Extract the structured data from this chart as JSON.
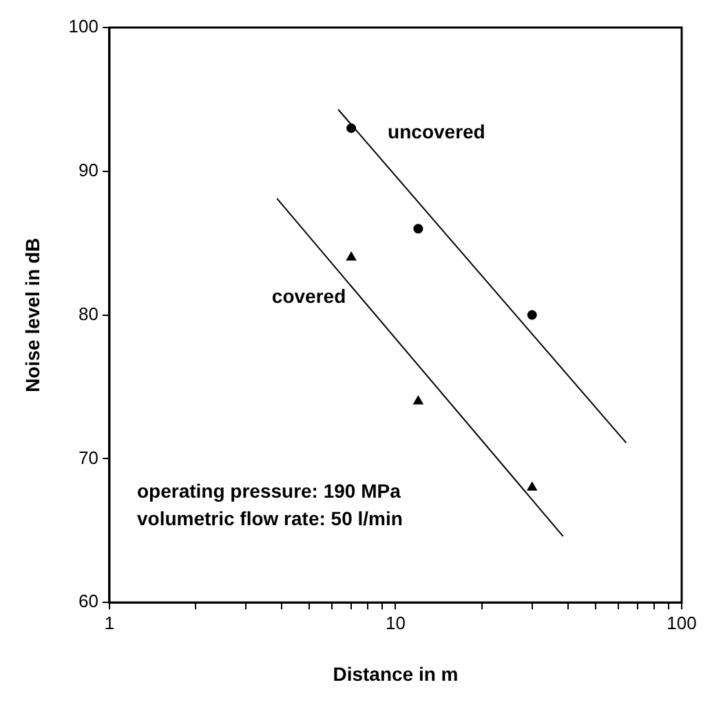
{
  "chart_data": {
    "type": "scatter",
    "xlabel": "Distance in m",
    "ylabel": "Noise level in dB",
    "log": "x",
    "grid": false,
    "legend": false,
    "xlim": [
      1,
      100
    ],
    "xticks": [
      1,
      {
        "value": 2,
        "label": null
      },
      {
        "value": 3,
        "label": null
      },
      {
        "value": 4,
        "label": null
      },
      {
        "value": 5,
        "label": null
      },
      {
        "value": 6,
        "label": null
      },
      {
        "value": 7,
        "label": null
      },
      {
        "value": 8,
        "label": null
      },
      {
        "value": 9,
        "label": null
      },
      10,
      {
        "value": 20,
        "label": null
      },
      {
        "value": 30,
        "label": null
      },
      {
        "value": 40,
        "label": null
      },
      {
        "value": 50,
        "label": null
      },
      {
        "value": 60,
        "label": null
      },
      {
        "value": 70,
        "label": null
      },
      {
        "value": 80,
        "label": null
      },
      {
        "value": 90,
        "label": null
      },
      100
    ],
    "ylim": [
      60,
      100
    ],
    "yticks": [
      60,
      70,
      80,
      90,
      100
    ],
    "series": [
      {
        "color": "#000000",
        "marker": "circle",
        "x": [
          7,
          12,
          30
        ],
        "values": [
          93,
          86,
          80
        ]
      },
      {
        "color": "#000000",
        "marker": "triangle",
        "x": [
          7,
          12,
          30
        ],
        "values": [
          84,
          74,
          68
        ]
      },
      {
        "name": "uncovered",
        "type": "line",
        "color": "#000000",
        "marker": "none",
        "line_style": "solid",
        "x": [
          6.3,
          64
        ],
        "values": [
          94.3,
          71.1
        ]
      },
      {
        "name": "covered",
        "type": "line",
        "color": "#000000",
        "marker": "none",
        "line_style": "solid",
        "x": [
          3.85,
          38.5
        ],
        "values": [
          88.1,
          64.6
        ]
      }
    ],
    "annotations": [
      "operating pressure: 190 MPa",
      "volumetric flow rate: 50 l/min"
    ]
  }
}
